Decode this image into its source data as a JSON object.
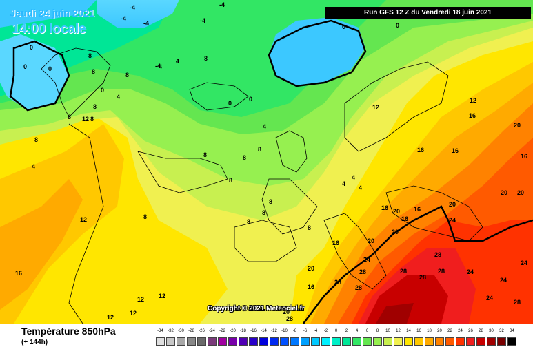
{
  "header": {
    "date": "Jeudi 24 juin 2021",
    "time": "14:00 locale",
    "run": "Run GFS 12 Z du Vendredi 18 juin 2021"
  },
  "footer": {
    "variable": "Température 850hPa",
    "lead": "(+ 144h)",
    "copyright": "Copyright © 2021 Meteociel.fr"
  },
  "legend": [
    {
      "value": "-34",
      "color": "#e0e0e0"
    },
    {
      "value": "-32",
      "color": "#c8c8c8"
    },
    {
      "value": "-30",
      "color": "#a8a8a8"
    },
    {
      "value": "-28",
      "color": "#888888"
    },
    {
      "value": "-26",
      "color": "#6a6a6a"
    },
    {
      "value": "-24",
      "color": "#7a3a7a"
    },
    {
      "value": "-22",
      "color": "#a000a0"
    },
    {
      "value": "-20",
      "color": "#7800aa"
    },
    {
      "value": "-18",
      "color": "#5000b4"
    },
    {
      "value": "-16",
      "color": "#2800c8"
    },
    {
      "value": "-14",
      "color": "#0000dc"
    },
    {
      "value": "-12",
      "color": "#0028f0"
    },
    {
      "value": "-10",
      "color": "#0050ff"
    },
    {
      "value": "-8",
      "color": "#0078ff"
    },
    {
      "value": "-6",
      "color": "#00a0ff"
    },
    {
      "value": "-4",
      "color": "#00c8ff"
    },
    {
      "value": "-2",
      "color": "#00f0ff"
    },
    {
      "value": "0",
      "color": "#00f0c8"
    },
    {
      "value": "2",
      "color": "#00e696"
    },
    {
      "value": "4",
      "color": "#32e664"
    },
    {
      "value": "6",
      "color": "#64e650"
    },
    {
      "value": "8",
      "color": "#96f050"
    },
    {
      "value": "10",
      "color": "#c8f050"
    },
    {
      "value": "12",
      "color": "#f0f050"
    },
    {
      "value": "14",
      "color": "#ffe600"
    },
    {
      "value": "16",
      "color": "#ffc800"
    },
    {
      "value": "18",
      "color": "#ffaa00"
    },
    {
      "value": "20",
      "color": "#ff8200"
    },
    {
      "value": "22",
      "color": "#ff5a00"
    },
    {
      "value": "24",
      "color": "#ff3200"
    },
    {
      "value": "26",
      "color": "#f01e1e"
    },
    {
      "value": "28",
      "color": "#c80000"
    },
    {
      "value": "30",
      "color": "#a00000"
    },
    {
      "value": "32",
      "color": "#780000"
    },
    {
      "value": "34",
      "color": "#000000"
    }
  ],
  "map_labels": [
    "-4",
    "-4",
    "-4",
    "-4",
    "-4",
    "-4",
    "0",
    "0",
    "0",
    "0",
    "0",
    "0",
    "0",
    "0",
    "4",
    "4",
    "4",
    "4",
    "4",
    "4",
    "4",
    "4",
    "8",
    "8",
    "8",
    "8",
    "8",
    "8",
    "8",
    "8",
    "8",
    "8",
    "8",
    "8",
    "8",
    "8",
    "8",
    "8",
    "8",
    "12",
    "12",
    "12",
    "12",
    "12",
    "12",
    "12",
    "12",
    "16",
    "16",
    "16",
    "16",
    "16",
    "16",
    "16",
    "16",
    "16",
    "16",
    "20",
    "20",
    "20",
    "20",
    "20",
    "20",
    "20",
    "20",
    "20",
    "24",
    "24",
    "24",
    "24",
    "24",
    "24",
    "28",
    "28",
    "28",
    "28",
    "28",
    "28",
    "28",
    "28",
    "28"
  ]
}
